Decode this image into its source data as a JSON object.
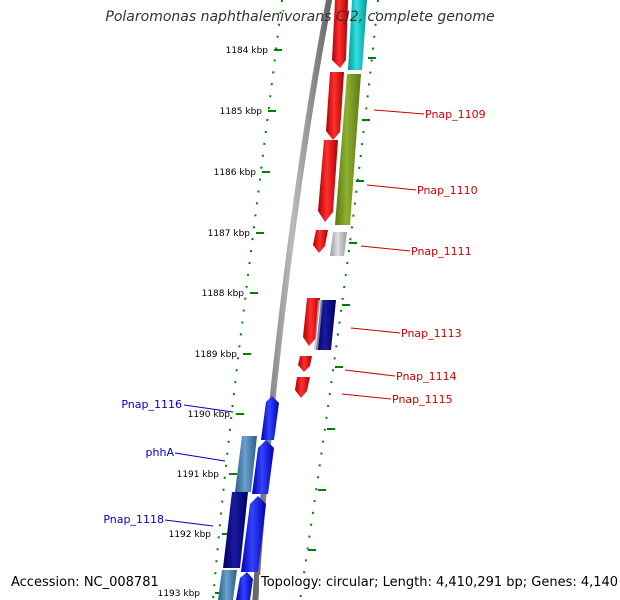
{
  "title": "Polaromonas naphthalenivorans CJ2, complete genome",
  "footer": {
    "accession": "Accession: NC_008781",
    "summary": "Topology: circular; Length: 4,410,291 bp; Genes: 4,140"
  },
  "scale": {
    "ticks": [
      "1184 kbp",
      "1185 kbp",
      "1186 kbp",
      "1187 kbp",
      "1188 kbp",
      "1189 kbp",
      "1190 kbp",
      "1191 kbp",
      "1192 kbp",
      "1193 kbp"
    ]
  },
  "gene_labels": {
    "right": [
      "Pnap_1109",
      "Pnap_1110",
      "Pnap_1111",
      "Pnap_1113",
      "Pnap_1114",
      "Pnap_1115"
    ],
    "left": [
      "Pnap_1116",
      "phhA",
      "Pnap_1118"
    ]
  },
  "colors": {
    "forward_cds": "#ff0000",
    "reverse_cds": "#0000ff",
    "cyan": "#00cccc",
    "olive": "#7a9a20",
    "gray": "#c0c0c0",
    "navy": "#000080",
    "steel": "#4682b4",
    "tick_green": "#008000",
    "backbone": "#888888"
  }
}
